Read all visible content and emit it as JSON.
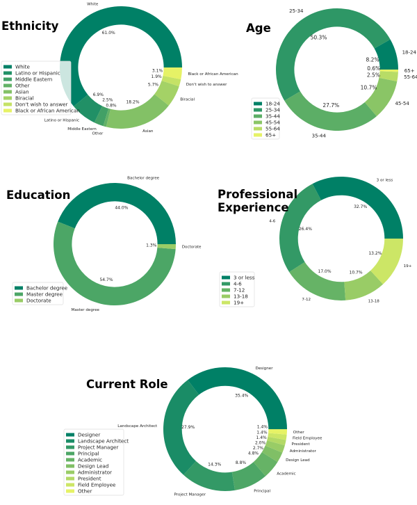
{
  "chart_data": [
    {
      "type": "pie",
      "style": "donut",
      "title": "Ethnicity",
      "labels": [
        "White",
        "Latino or Hispanic",
        "Middle Eastern",
        "Other",
        "Asian",
        "Biracial",
        "Don't wish to answer",
        "Black or African American"
      ],
      "pct_labels": [
        "61.0%",
        "6.9%",
        "2.5%",
        "0.8%",
        "18.2%",
        "5.7%",
        "1.9%",
        "3.1%"
      ],
      "values": [
        61.0,
        6.9,
        2.5,
        0.8,
        18.2,
        5.7,
        1.9,
        3.1
      ],
      "colors": [
        "#008066",
        "#219066",
        "#42a066",
        "#62b166",
        "#83c166",
        "#a4d266",
        "#c5e266",
        "#e6f266"
      ],
      "legend_placement": "lower-left"
    },
    {
      "type": "pie",
      "style": "donut",
      "title": "Age",
      "labels": [
        "18-24",
        "25-34",
        "35-44",
        "45-54",
        "55-64",
        "65+"
      ],
      "pct_labels": [
        "8.2%",
        "50.3%",
        "27.7%",
        "10.7%",
        "2.5%",
        "0.6%"
      ],
      "values": [
        8.2,
        50.3,
        27.7,
        10.7,
        2.5,
        0.6
      ],
      "colors": [
        "#008066",
        "#2e9766",
        "#5cae66",
        "#8ac566",
        "#b8dc66",
        "#e6f266"
      ],
      "legend_placement": "lower-left"
    },
    {
      "type": "pie",
      "style": "donut",
      "title": "Education",
      "labels": [
        "Bachelor degree",
        "Master degree",
        "Doctorate"
      ],
      "pct_labels": [
        "44.0%",
        "54.7%",
        "1.3%"
      ],
      "values": [
        44.0,
        54.7,
        1.3
      ],
      "colors": [
        "#008066",
        "#4ca666",
        "#99cc66"
      ],
      "legend_placement": "lower-left"
    },
    {
      "type": "pie",
      "style": "donut",
      "title": "Professional\nExperience",
      "title_lines": [
        "Professional",
        "Experience"
      ],
      "labels": [
        "3 or less",
        "4-6",
        "7-12",
        "13-18",
        "19+"
      ],
      "pct_labels": [
        "32.7%",
        "26.4%",
        "17.0%",
        "10.7%",
        "13.2%"
      ],
      "values": [
        32.7,
        26.4,
        17.0,
        10.7,
        13.2
      ],
      "colors": [
        "#008066",
        "#339966",
        "#66b366",
        "#99cc66",
        "#cce666"
      ],
      "legend_placement": "lower-left"
    },
    {
      "type": "pie",
      "style": "donut",
      "title": "Current Role",
      "labels": [
        "Designer",
        "Landscape Architect",
        "Project Manager",
        "Principal",
        "Academic",
        "Design Lead",
        "Administrator",
        "President",
        "Field Employee",
        "Other"
      ],
      "pct_labels": [
        "35.4%",
        "27.9%",
        "14.3%",
        "8.8%",
        "4.8%",
        "2.7%",
        "2.0%",
        "1.4%",
        "1.4%",
        "1.4%"
      ],
      "values": [
        35.4,
        27.9,
        14.3,
        8.8,
        4.8,
        2.7,
        2.0,
        1.4,
        1.4,
        1.4
      ],
      "colors": [
        "#008066",
        "#1a8c66",
        "#339966",
        "#4da666",
        "#66b366",
        "#80bf66",
        "#99cc66",
        "#b3d966",
        "#cce666",
        "#e6f266"
      ],
      "legend_placement": "lower-left"
    }
  ]
}
